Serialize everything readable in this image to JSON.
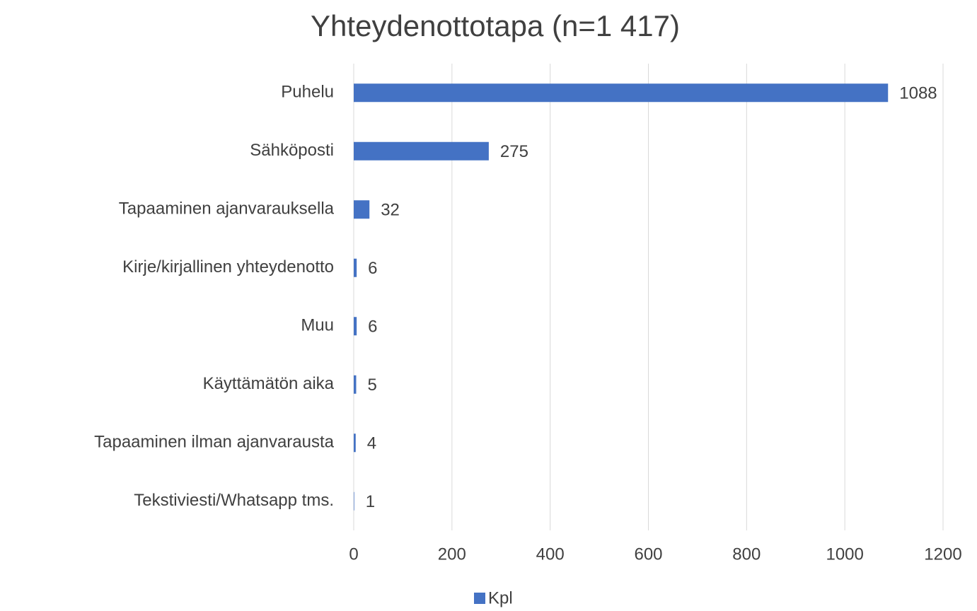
{
  "chart_data": {
    "type": "bar",
    "orientation": "horizontal",
    "title": "Yhteydenottotapa (n=1 417)",
    "categories": [
      "Puhelu",
      "Sähköposti",
      "Tapaaminen ajanvarauksella",
      "Kirje/kirjallinen yhteydenotto",
      "Muu",
      "Käyttämätön aika",
      "Tapaaminen ilman ajanvarausta",
      "Tekstiviesti/Whatsapp tms."
    ],
    "series": [
      {
        "name": "Kpl",
        "color": "#4472c4",
        "values": [
          1088,
          275,
          32,
          6,
          6,
          5,
          4,
          1
        ]
      }
    ],
    "xlim": [
      0,
      1200
    ],
    "xticks": [
      0,
      200,
      400,
      600,
      800,
      1000,
      1200
    ],
    "grid": true,
    "legend": "bottom"
  }
}
